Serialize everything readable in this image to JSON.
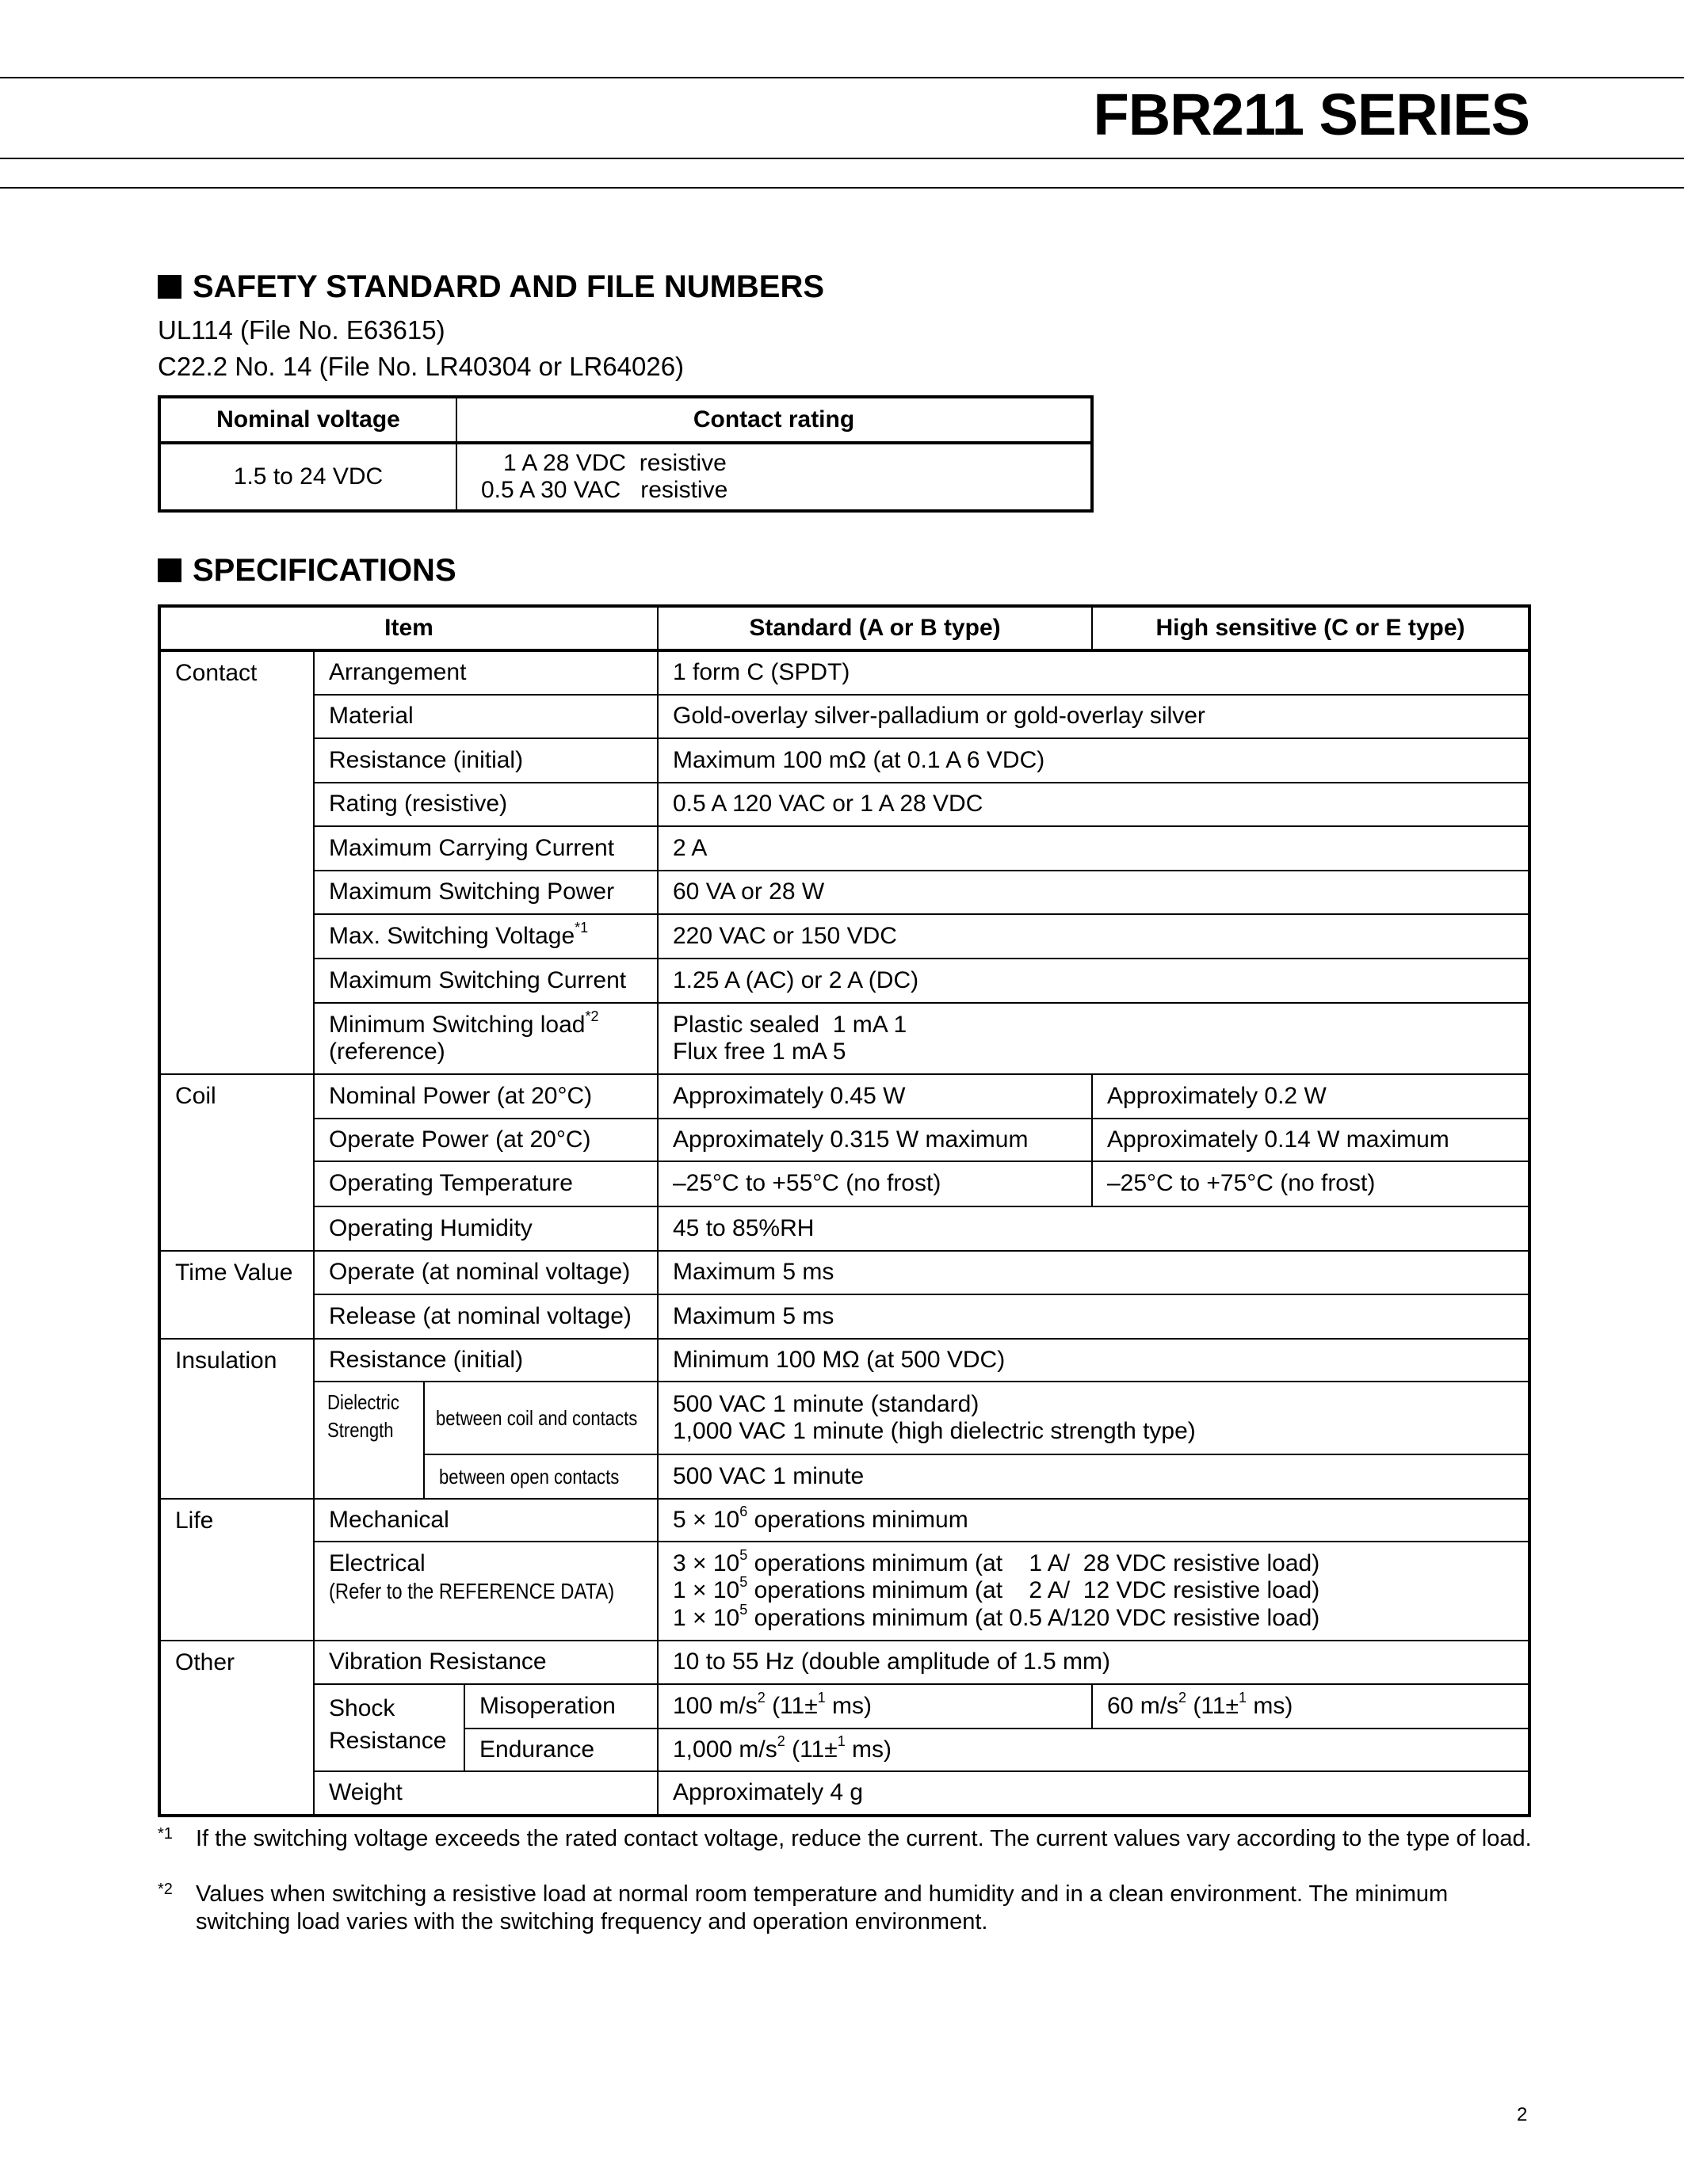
{
  "header": {
    "title": "FBR211 SERIES"
  },
  "safety": {
    "heading": "SAFETY STANDARD AND FILE NUMBERS",
    "lines": [
      "UL114 (File No. E63615)",
      "C22.2 No. 14 (File No. LR40304 or LR64026)"
    ],
    "table": {
      "headers": [
        "Nominal voltage",
        "Contact rating"
      ],
      "voltage": "1.5 to 24 VDC",
      "ratings": [
        "1 A 28 VDC  resistive",
        "0.5 A 30 VAC   resistive"
      ]
    }
  },
  "specs": {
    "heading": "SPECIFICATIONS",
    "headers": [
      "Item",
      "Standard (A or B type)",
      "High sensitive (C or E type)"
    ],
    "groups": [
      "Contact",
      "Coil",
      "Time Value",
      "Insulation",
      "Life",
      "Other"
    ],
    "contact": {
      "arrangement": [
        "Arrangement",
        "1 form C (SPDT)"
      ],
      "material": [
        "Material",
        "Gold-overlay silver-palladium or gold-overlay silver"
      ],
      "resistance": [
        "Resistance (initial)",
        "Maximum 100 mΩ (at 0.1 A 6 VDC)"
      ],
      "rating": [
        "Rating (resistive)",
        "0.5 A 120 VAC or 1 A 28 VDC"
      ],
      "carry": [
        "Maximum Carrying Current",
        "2 A"
      ],
      "power": [
        "Maximum Switching Power",
        "60 VA or 28 W"
      ],
      "voltage": [
        "Max. Switching Voltage",
        "*1",
        "220 VAC or 150 VDC"
      ],
      "current": [
        "Maximum Switching Current",
        "1.25 A (AC) or 2 A (DC)"
      ],
      "minload": [
        "Minimum Switching load",
        "*2",
        "(reference)",
        "Plastic sealed  1 mA 1",
        "Flux free 1 mA 5"
      ]
    },
    "coil": {
      "nominal": [
        "Nominal Power (at 20°C)",
        "Approximately 0.45 W",
        "Approximately 0.2 W"
      ],
      "operate": [
        "Operate Power (at 20°C)",
        "Approximately 0.315 W maximum",
        "Approximately 0.14 W maximum"
      ],
      "temp": [
        "Operating Temperature",
        "–25°C to +55°C (no frost)",
        "–25°C to +75°C (no frost)"
      ],
      "humidity": [
        "Operating Humidity",
        "45 to 85%RH"
      ]
    },
    "time": {
      "operate": [
        "Operate (at nominal voltage)",
        "Maximum 5 ms"
      ],
      "release": [
        "Release (at nominal voltage)",
        "Maximum 5 ms"
      ]
    },
    "insulation": {
      "resistance": [
        "Resistance (initial)",
        "Minimum 100 MΩ (at 500 VDC)"
      ],
      "dielectric": [
        "Dielectric",
        "Strength"
      ],
      "coil_contacts": [
        "between coil and contacts",
        "500 VAC 1 minute (standard)",
        "1,000 VAC 1 minute (high dielectric strength type)"
      ],
      "open_contacts": [
        "between open contacts",
        "500 VAC 1 minute"
      ]
    },
    "life": {
      "mechanical": [
        "Mechanical",
        "5 × 10",
        "6",
        " operations minimum"
      ],
      "electrical_label": [
        "Electrical",
        "(Refer to the REFERENCE DATA)"
      ],
      "electrical": [
        [
          "3 × 10",
          "5",
          " operations minimum (at    1 A/  28 VDC resistive load)"
        ],
        [
          "1 × 10",
          "5",
          " operations minimum (at    2 A/  12 VDC resistive load)"
        ],
        [
          "1 × 10",
          "5",
          " operations minimum (at 0.5 A/120 VDC resistive load)"
        ]
      ]
    },
    "other": {
      "vibration": [
        "Vibration Resistance",
        "10 to 55 Hz (double amplitude of 1.5 mm)"
      ],
      "shock": [
        "Shock",
        "Resistance"
      ],
      "misoperation": [
        "Misoperation",
        "100 m/s",
        "2",
        " (11±",
        "1",
        " ms)",
        "60 m/s",
        "2",
        " (11±",
        "1",
        " ms)"
      ],
      "endurance": [
        "Endurance",
        "1,000 m/s",
        "2",
        " (11±",
        "1",
        " ms)"
      ],
      "weight": [
        "Weight",
        "Approximately 4 g"
      ]
    }
  },
  "footnotes": [
    {
      "mark": "*1",
      "text": "If the switching voltage exceeds the rated contact voltage, reduce the current. The current values vary according to the type of load."
    },
    {
      "mark": "*2",
      "text": "Values when switching a resistive load at normal room temperature and humidity and in a clean environment. The minimum switching load varies with the switching frequency and operation environment."
    }
  ],
  "page_number": "2"
}
